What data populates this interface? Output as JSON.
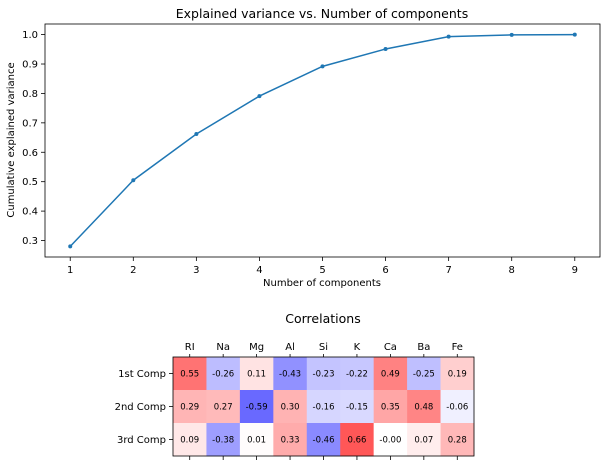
{
  "chart_data": [
    {
      "type": "line",
      "title": "Explained variance vs. Number of components",
      "xlabel": "Number of components",
      "ylabel": "Cumulative explained variance",
      "x": [
        1,
        2,
        3,
        4,
        5,
        6,
        7,
        8,
        9
      ],
      "y": [
        0.28,
        0.505,
        0.662,
        0.791,
        0.892,
        0.951,
        0.993,
        0.999,
        1.0
      ],
      "xticks": [
        "1",
        "2",
        "3",
        "4",
        "5",
        "6",
        "7",
        "8",
        "9"
      ],
      "yticks": [
        "0.3",
        "0.4",
        "0.5",
        "0.6",
        "0.7",
        "0.8",
        "0.9",
        "1.0"
      ],
      "xlim": [
        0.6,
        9.4
      ],
      "ylim": [
        0.244,
        1.036
      ],
      "color": "#1f77b4",
      "grid": false
    },
    {
      "type": "heatmap",
      "title": "Correlations",
      "columns": [
        "RI",
        "Na",
        "Mg",
        "Al",
        "Si",
        "K",
        "Ca",
        "Ba",
        "Fe"
      ],
      "rows": [
        "1st Comp",
        "2nd Comp",
        "3rd Comp"
      ],
      "values": [
        [
          0.55,
          -0.26,
          0.11,
          -0.43,
          -0.23,
          -0.22,
          0.49,
          -0.25,
          0.19
        ],
        [
          0.29,
          0.27,
          -0.59,
          0.3,
          -0.16,
          -0.15,
          0.35,
          0.48,
          -0.06
        ],
        [
          0.09,
          -0.38,
          0.01,
          0.33,
          -0.46,
          0.66,
          -0.0,
          0.07,
          0.28
        ]
      ],
      "labels": [
        [
          "0.55",
          "-0.26",
          "0.11",
          "-0.43",
          "-0.23",
          "-0.22",
          "0.49",
          "-0.25",
          "0.19"
        ],
        [
          "0.29",
          "0.27",
          "-0.59",
          "0.30",
          "-0.16",
          "-0.15",
          "0.35",
          "0.48",
          "-0.06"
        ],
        [
          "0.09",
          "-0.38",
          "0.01",
          "0.33",
          "-0.46",
          "0.66",
          "-0.00",
          "0.07",
          "0.28"
        ]
      ],
      "colormap": "bwr",
      "vmin": -1,
      "vmax": 1
    }
  ]
}
